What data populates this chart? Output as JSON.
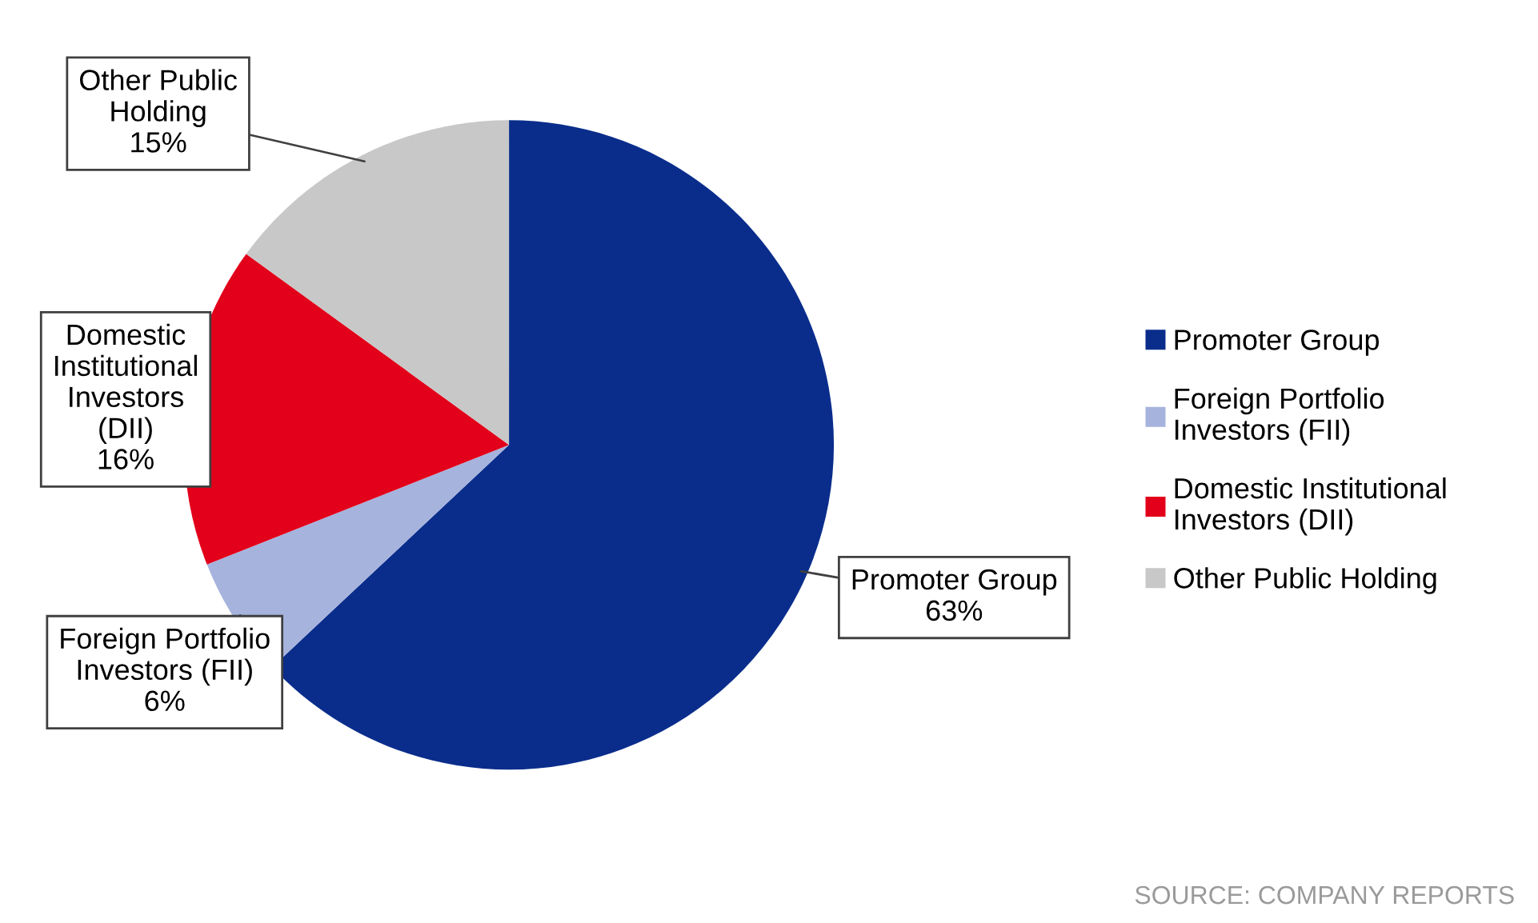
{
  "chart_data": {
    "type": "pie",
    "categories": [
      "Promoter Group",
      "Foreign Portfolio Investors (FII)",
      "Domestic Institutional Investors (DII)",
      "Other Public Holding"
    ],
    "values": [
      63,
      6,
      16,
      15
    ],
    "value_labels": [
      "63%",
      "6%",
      "16%",
      "15%"
    ],
    "colors": [
      "#0a2d8c",
      "#a6b3dd",
      "#e2001a",
      "#c8c8c8"
    ],
    "legend": "right",
    "annotations": [
      "SOURCE: COMPANY REPORTS"
    ]
  }
}
